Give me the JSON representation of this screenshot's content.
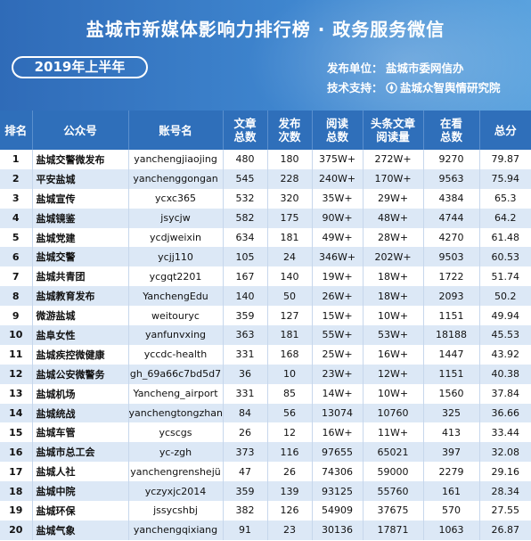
{
  "header": {
    "title": "盐城市新媒体影响力排行榜 · 政务服务微信",
    "period": "2019年上半年",
    "publisher_label": "发布单位：",
    "publisher": "盐城市委网信办",
    "support_label": "技术支持：",
    "support": "盐城众智舆情研究院",
    "support_icon": "compass-logo-icon"
  },
  "colors": {
    "banner": "#3f86cf",
    "header_row": "#2f6fba",
    "stripe": "#dce8f6"
  },
  "columns": [
    "排名",
    "公众号",
    "账号名",
    "文章\n总数",
    "发布\n次数",
    "阅读\n总数",
    "头条文章\n阅读量",
    "在看\n总数",
    "总分"
  ],
  "rows": [
    [
      "1",
      "盐城交警微发布",
      "yanchengjiaojing",
      "480",
      "180",
      "375W+",
      "272W+",
      "9270",
      "79.87"
    ],
    [
      "2",
      "平安盐城",
      "yanchenggongan",
      "545",
      "228",
      "240W+",
      "170W+",
      "9563",
      "75.94"
    ],
    [
      "3",
      "盐城宣传",
      "ycxc365",
      "532",
      "320",
      "35W+",
      "29W+",
      "4384",
      "65.3"
    ],
    [
      "4",
      "盐城镜鉴",
      "jsycjw",
      "582",
      "175",
      "90W+",
      "48W+",
      "4744",
      "64.2"
    ],
    [
      "5",
      "盐城党建",
      "ycdjweixin",
      "634",
      "181",
      "49W+",
      "28W+",
      "4270",
      "61.48"
    ],
    [
      "6",
      "盐城交警",
      "ycjj110",
      "105",
      "24",
      "346W+",
      "202W+",
      "9503",
      "60.53"
    ],
    [
      "7",
      "盐城共青团",
      "ycgqt2201",
      "167",
      "140",
      "19W+",
      "18W+",
      "1722",
      "51.74"
    ],
    [
      "8",
      "盐城教育发布",
      "YanchengEdu",
      "140",
      "50",
      "26W+",
      "18W+",
      "2093",
      "50.2"
    ],
    [
      "9",
      "微游盐城",
      "weitouryc",
      "359",
      "127",
      "15W+",
      "10W+",
      "1151",
      "49.94"
    ],
    [
      "10",
      "盐阜女性",
      "yanfunvxing",
      "363",
      "181",
      "55W+",
      "53W+",
      "18188",
      "45.53"
    ],
    [
      "11",
      "盐城疾控微健康",
      "yccdc-health",
      "331",
      "168",
      "25W+",
      "16W+",
      "1447",
      "43.92"
    ],
    [
      "12",
      "盐城公安微警务",
      "gh_69a66c7bd5d7",
      "36",
      "10",
      "23W+",
      "12W+",
      "1151",
      "40.38"
    ],
    [
      "13",
      "盐城机场",
      "Yancheng_airport",
      "331",
      "85",
      "14W+",
      "10W+",
      "1560",
      "37.84"
    ],
    [
      "14",
      "盐城统战",
      "yanchengtongzhan",
      "84",
      "56",
      "13074",
      "10760",
      "325",
      "36.66"
    ],
    [
      "15",
      "盐城车管",
      "ycscgs",
      "26",
      "12",
      "16W+",
      "11W+",
      "413",
      "33.44"
    ],
    [
      "16",
      "盐城市总工会",
      "yc-zgh",
      "373",
      "116",
      "97655",
      "65021",
      "397",
      "32.08"
    ],
    [
      "17",
      "盐城人社",
      "yanchengrenshejü",
      "47",
      "26",
      "74306",
      "59000",
      "2279",
      "29.16"
    ],
    [
      "18",
      "盐城中院",
      "yczyxjc2014",
      "359",
      "139",
      "93125",
      "55760",
      "161",
      "28.34"
    ],
    [
      "19",
      "盐城环保",
      "jssycshbj",
      "382",
      "126",
      "54909",
      "37675",
      "570",
      "27.55"
    ],
    [
      "20",
      "盐城气象",
      "yanchengqixiang",
      "91",
      "23",
      "30136",
      "17871",
      "1063",
      "26.87"
    ]
  ]
}
